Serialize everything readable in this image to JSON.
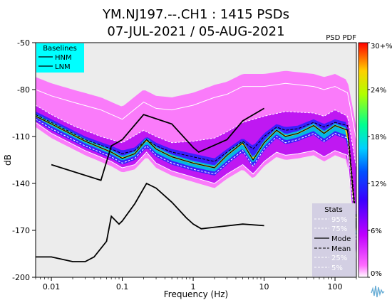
{
  "title_line1": "YM.NJ197.--.CH1 : 1415 PSDs",
  "title_line2": "07-JUL-2021 / 05-AUG-2021",
  "colorbar_title": "PSD PDF",
  "baselines": {
    "title": "Baselines",
    "items": [
      "HNM",
      "LNM"
    ],
    "bg": "#00ffff"
  },
  "stats": {
    "title": "Stats",
    "items": [
      "95%",
      "75%",
      "Mode",
      "Mean",
      "25%",
      "5%"
    ],
    "bg": "#d3cfe3"
  },
  "colors": {
    "plot_bg": "#ececec",
    "frame": "#000000",
    "grid": "#ffffff"
  },
  "chart_data": {
    "type": "heatmap",
    "title": "YM.NJ197.--.CH1 : 1415 PSDs",
    "subtitle": "07-JUL-2021 / 05-AUG-2021",
    "xlabel": "Frequency (Hz)",
    "ylabel": "dB",
    "xscale": "log",
    "xlim": [
      0.006,
      200
    ],
    "ylim": [
      -200,
      -50
    ],
    "xticks": [
      0.01,
      0.1,
      1,
      10,
      100
    ],
    "xtick_labels": [
      "0.01",
      "0.1",
      "1",
      "10",
      "100"
    ],
    "yticks": [
      -50,
      -80,
      -110,
      -140,
      -170,
      -200
    ],
    "ytick_labels": [
      "-50",
      "-80",
      "-110",
      "-140",
      "-170",
      "-200"
    ],
    "colorbar": {
      "min": 0,
      "max": 30,
      "ticks": [
        0,
        6,
        12,
        18,
        24,
        30
      ],
      "tick_labels": [
        "0%",
        "6%",
        "12%",
        "18%",
        "24%",
        "30+%"
      ]
    },
    "series": [
      {
        "name": "HNM",
        "x": [
          0.01,
          0.05,
          0.07,
          0.1,
          0.2,
          0.5,
          1,
          1.2,
          3,
          5,
          10
        ],
        "y": [
          -128,
          -138,
          -116,
          -112,
          -96,
          -102,
          -117,
          -120,
          -112,
          -100,
          -92
        ]
      },
      {
        "name": "LNM",
        "x": [
          0.006,
          0.01,
          0.02,
          0.03,
          0.04,
          0.06,
          0.07,
          0.09,
          0.1,
          0.15,
          0.22,
          0.3,
          0.5,
          0.8,
          1,
          1.3,
          2,
          5,
          10
        ],
        "y": [
          -187,
          -187,
          -190,
          -190,
          -187,
          -177,
          -161,
          -166,
          -164,
          -153,
          -140,
          -143,
          -152,
          -162,
          -166,
          -169,
          -168,
          -166,
          -167
        ]
      },
      {
        "name": "Mode",
        "x": [
          0.006,
          0.01,
          0.03,
          0.07,
          0.1,
          0.15,
          0.22,
          0.3,
          0.5,
          1,
          2,
          3,
          5,
          7,
          10,
          15,
          20,
          30,
          50,
          70,
          100,
          150,
          200
        ],
        "y": [
          -97,
          -102,
          -113,
          -120,
          -124,
          -121,
          -112,
          -118,
          -123,
          -127,
          -130,
          -122,
          -114,
          -125,
          -114,
          -106,
          -110,
          -108,
          -103,
          -108,
          -103,
          -106,
          -170
        ]
      },
      {
        "name": "Mean",
        "x": [
          0.006,
          0.01,
          0.03,
          0.07,
          0.1,
          0.15,
          0.22,
          0.3,
          0.5,
          1,
          2,
          3,
          5,
          7,
          10,
          15,
          20,
          30,
          50,
          70,
          100,
          150,
          200
        ],
        "y": [
          -96,
          -101,
          -112,
          -118,
          -121,
          -119,
          -112,
          -116,
          -120,
          -123,
          -126,
          -120,
          -113,
          -118,
          -110,
          -104,
          -106,
          -105,
          -101,
          -104,
          -101,
          -103,
          -165
        ]
      },
      {
        "name": "95%",
        "x": [
          0.006,
          0.01,
          0.02,
          0.05,
          0.1,
          0.2,
          0.3,
          0.5,
          1,
          2,
          3,
          5,
          10,
          20,
          50,
          70,
          100,
          150,
          200
        ],
        "y": [
          -80,
          -84,
          -88,
          -93,
          -99,
          -88,
          -92,
          -93,
          -90,
          -85,
          -83,
          -78,
          -78,
          -76,
          -78,
          -80,
          -78,
          -82,
          -112
        ]
      },
      {
        "name": "75%",
        "x": [
          0.006,
          0.01,
          0.02,
          0.05,
          0.1,
          0.2,
          0.3,
          0.5,
          1,
          2,
          3,
          5,
          10,
          20,
          50,
          70,
          100,
          150,
          200
        ],
        "y": [
          -90,
          -96,
          -103,
          -110,
          -114,
          -106,
          -110,
          -114,
          -113,
          -111,
          -107,
          -101,
          -97,
          -94,
          -95,
          -97,
          -93,
          -97,
          -130
        ]
      },
      {
        "name": "25%",
        "x": [
          0.006,
          0.01,
          0.03,
          0.07,
          0.1,
          0.15,
          0.22,
          0.3,
          0.5,
          1,
          2,
          3,
          5,
          7,
          10,
          15,
          20,
          30,
          50,
          70,
          100,
          150,
          200
        ],
        "y": [
          -99,
          -105,
          -116,
          -123,
          -127,
          -124,
          -116,
          -122,
          -127,
          -131,
          -134,
          -127,
          -119,
          -129,
          -118,
          -110,
          -114,
          -112,
          -108,
          -113,
          -108,
          -111,
          -178
        ]
      },
      {
        "name": "5%",
        "x": [
          0.006,
          0.01,
          0.03,
          0.07,
          0.1,
          0.15,
          0.22,
          0.3,
          0.5,
          1,
          2,
          3,
          5,
          7,
          10,
          15,
          20,
          30,
          50,
          70,
          100,
          150,
          200
        ],
        "y": [
          -101,
          -108,
          -119,
          -126,
          -130,
          -128,
          -120,
          -127,
          -132,
          -136,
          -140,
          -134,
          -128,
          -134,
          -126,
          -120,
          -122,
          -121,
          -119,
          -123,
          -119,
          -122,
          -190
        ]
      }
    ]
  }
}
